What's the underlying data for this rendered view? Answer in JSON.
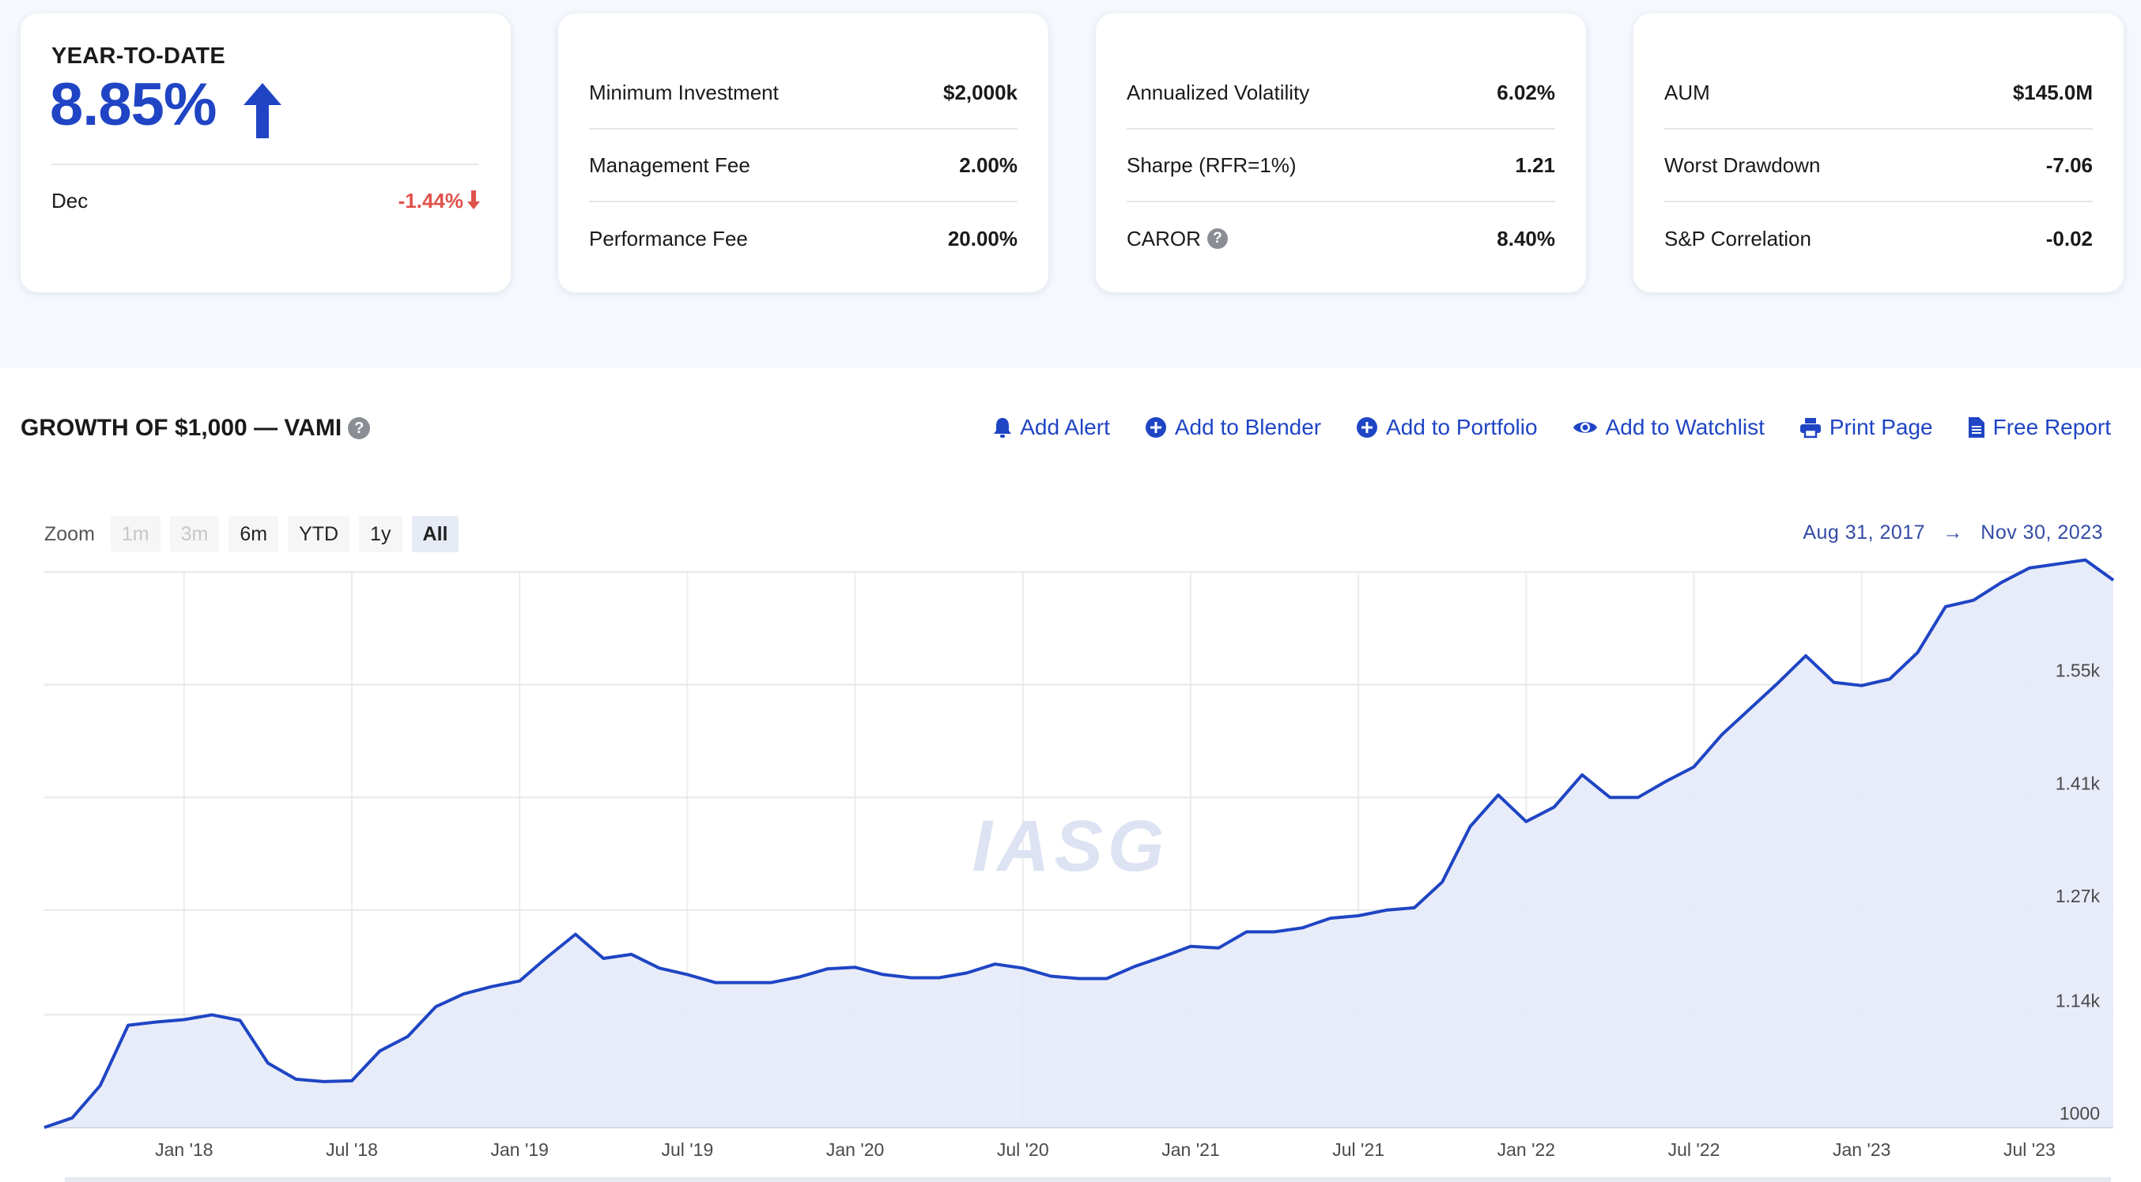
{
  "ytd": {
    "label": "YEAR-TO-DATE",
    "value": "8.85%",
    "month_label": "Dec",
    "month_value": "-1.44%"
  },
  "stats_cards": [
    {
      "rows": [
        {
          "label": "Minimum Investment",
          "value": "$2,000k"
        },
        {
          "label": "Management Fee",
          "value": "2.00%"
        },
        {
          "label": "Performance Fee",
          "value": "20.00%"
        }
      ]
    },
    {
      "rows": [
        {
          "label": "Annualized Volatility",
          "value": "6.02%"
        },
        {
          "label": "Sharpe (RFR=1%)",
          "value": "1.21"
        },
        {
          "label": "CAROR",
          "value": "8.40%",
          "help": "?"
        }
      ]
    },
    {
      "rows": [
        {
          "label": "AUM",
          "value": "$145.0M"
        },
        {
          "label": "Worst Drawdown",
          "value": "-7.06"
        },
        {
          "label": "S&P Correlation",
          "value": "-0.02"
        }
      ]
    }
  ],
  "section": {
    "title": "GROWTH OF $1,000 — VAMI",
    "help": "?"
  },
  "actions": [
    {
      "label": "Add Alert",
      "icon": "bell-icon"
    },
    {
      "label": "Add to Blender",
      "icon": "plus-circle-icon"
    },
    {
      "label": "Add to Portfolio",
      "icon": "plus-circle-icon"
    },
    {
      "label": "Add to Watchlist",
      "icon": "eye-icon"
    },
    {
      "label": "Print Page",
      "icon": "printer-icon"
    },
    {
      "label": "Free Report",
      "icon": "document-icon"
    }
  ],
  "zoom": {
    "label": "Zoom",
    "buttons": [
      {
        "label": "1m",
        "state": "disabled"
      },
      {
        "label": "3m",
        "state": "disabled"
      },
      {
        "label": "6m",
        "state": "normal"
      },
      {
        "label": "YTD",
        "state": "normal"
      },
      {
        "label": "1y",
        "state": "normal"
      },
      {
        "label": "All",
        "state": "active"
      }
    ]
  },
  "range": {
    "from": "Aug 31, 2017",
    "arrow": "→",
    "to": "Nov 30, 2023"
  },
  "watermark": "IASG",
  "colors": {
    "accent": "#1f45c4",
    "negative": "#e0524b",
    "area_fill": "#e6eaf7",
    "line": "#1f45c4"
  },
  "chart_data": {
    "type": "area",
    "start": "2017-08",
    "y_ticks": [
      1000,
      1140,
      1270,
      1410,
      1550
    ],
    "y_tick_labels": [
      "1000",
      "1.14k",
      "1.27k",
      "1.41k",
      "1.55k"
    ],
    "ylim": [
      1000,
      1690
    ],
    "x_tick_labels": [
      "Jan '18",
      "Jul '18",
      "Jan '19",
      "Jul '19",
      "Jan '20",
      "Jul '20",
      "Jan '21",
      "Jul '21",
      "Jan '22",
      "Jul '22",
      "Jan '23",
      "Jul '23"
    ],
    "x_tick_months": [
      "2018-01",
      "2018-07",
      "2019-01",
      "2019-07",
      "2020-01",
      "2020-07",
      "2021-01",
      "2021-07",
      "2022-01",
      "2022-07",
      "2023-01",
      "2023-07"
    ],
    "values": [
      1000,
      1012,
      1052,
      1127,
      1131,
      1134,
      1140,
      1133,
      1080,
      1060,
      1057,
      1058,
      1095,
      1113,
      1150,
      1166,
      1175,
      1182,
      1212,
      1240,
      1210,
      1215,
      1198,
      1190,
      1180,
      1180,
      1180,
      1187,
      1197,
      1199,
      1190,
      1186,
      1186,
      1192,
      1203,
      1198,
      1188,
      1185,
      1185,
      1200,
      1212,
      1225,
      1223,
      1243,
      1243,
      1248,
      1260,
      1263,
      1270,
      1273,
      1305,
      1374,
      1413,
      1380,
      1398,
      1438,
      1410,
      1410,
      1430,
      1448,
      1488,
      1520,
      1552,
      1586,
      1553,
      1549,
      1557,
      1590,
      1647,
      1655,
      1677,
      1695,
      1700,
      1705,
      1680
    ]
  }
}
